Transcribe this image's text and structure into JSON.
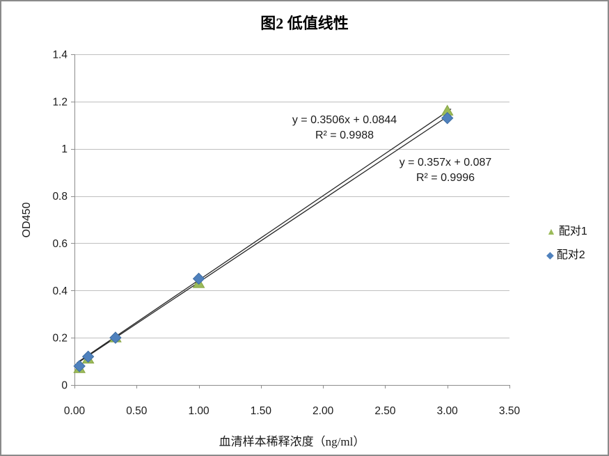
{
  "chart_data": {
    "type": "scatter",
    "title": "图2 低值线性",
    "xlabel": "血清样本稀释浓度（ng/ml）",
    "ylabel": "OD450",
    "xlim": [
      0,
      3.5
    ],
    "ylim": [
      0,
      1.4
    ],
    "grid": "horizontal",
    "legend_position": "right",
    "x_ticks": [
      0,
      0.5,
      1.0,
      1.5,
      2.0,
      2.5,
      3.0,
      3.5
    ],
    "x_tick_labels": [
      "0.00",
      "0.50",
      "1.00",
      "1.50",
      "2.00",
      "2.50",
      "3.00",
      "3.50"
    ],
    "y_ticks": [
      0,
      0.2,
      0.4,
      0.6,
      0.8,
      1.0,
      1.2,
      1.4
    ],
    "y_tick_labels": [
      "0",
      "0.2",
      "0.4",
      "0.6",
      "0.8",
      "1",
      "1.2",
      "1.4"
    ],
    "series": [
      {
        "name": "配对1",
        "marker": "triangle",
        "marker_glyph": "▲",
        "x": [
          0.04,
          0.11,
          0.33,
          1.0,
          3.0
        ],
        "y": [
          0.07,
          0.11,
          0.2,
          0.43,
          1.16
        ],
        "trendline": {
          "slope": 0.3506,
          "intercept": 0.0844,
          "r2": 0.9988,
          "equation_label": "y = 0.3506x + 0.0844",
          "r2_label": "R² = 0.9988"
        }
      },
      {
        "name": "配对2",
        "marker": "diamond",
        "marker_glyph": "◆",
        "x": [
          0.04,
          0.11,
          0.33,
          1.0,
          3.0
        ],
        "y": [
          0.08,
          0.12,
          0.2,
          0.45,
          1.13
        ],
        "trendline": {
          "slope": 0.357,
          "intercept": 0.087,
          "r2": 0.9996,
          "equation_label": "y = 0.357x + 0.087",
          "r2_label": "R² = 0.9996"
        }
      }
    ],
    "colors": {
      "series1": "#9BBB59",
      "series1_edge": "#86A343",
      "series2": "#4F81BD",
      "series2_edge": "#3D6DA3",
      "gridline": "#BFBFBF",
      "axis": "#8C8C8C",
      "trendline": "#262626",
      "text": "#1a1a1a",
      "frame_border": "#8A8A8A"
    }
  }
}
